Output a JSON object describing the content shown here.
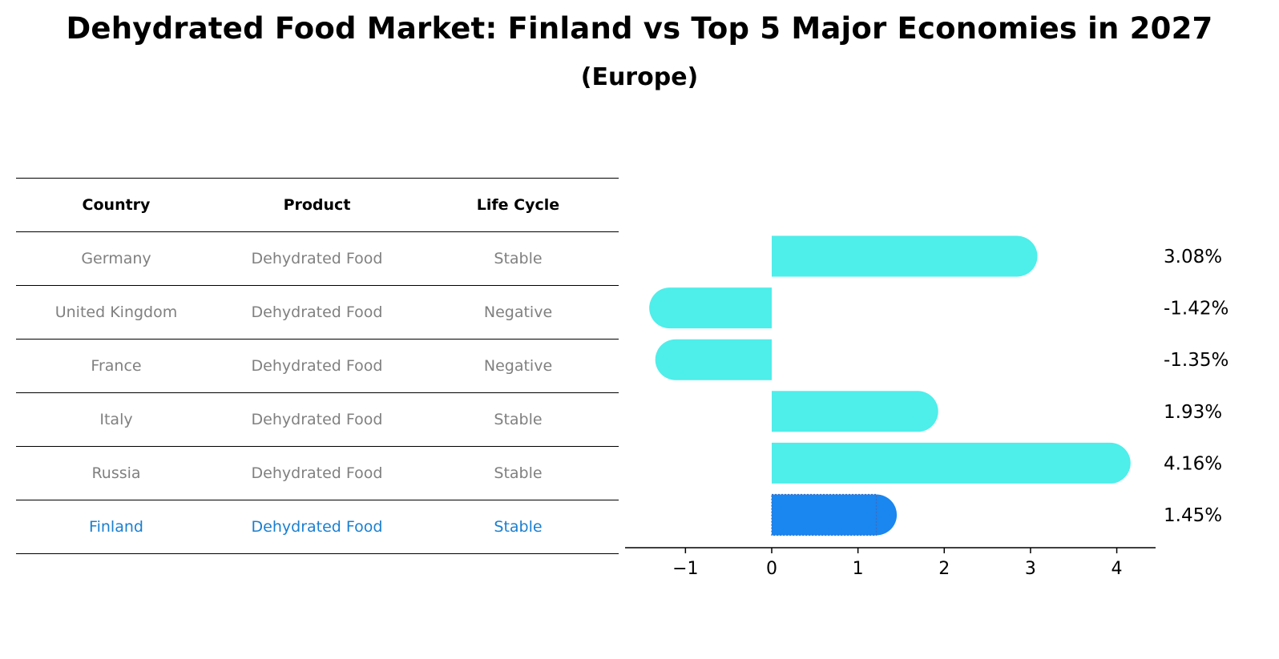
{
  "title": "Dehydrated Food Market: Finland vs Top 5 Major Economies in 2027",
  "subtitle": "(Europe)",
  "table": {
    "headers": [
      "Country",
      "Product",
      "Life Cycle"
    ],
    "rows": [
      {
        "country": "Germany",
        "product": "Dehydrated Food",
        "life_cycle": "Stable",
        "highlight": false
      },
      {
        "country": "United Kingdom",
        "product": "Dehydrated Food",
        "life_cycle": "Negative",
        "highlight": false
      },
      {
        "country": "France",
        "product": "Dehydrated Food",
        "life_cycle": "Negative",
        "highlight": false
      },
      {
        "country": "Italy",
        "product": "Dehydrated Food",
        "life_cycle": "Stable",
        "highlight": false
      },
      {
        "country": "Russia",
        "product": "Dehydrated Food",
        "life_cycle": "Stable",
        "highlight": false
      },
      {
        "country": "Finland",
        "product": "Dehydrated Food",
        "life_cycle": "Stable",
        "highlight": true
      }
    ]
  },
  "colors": {
    "bar": "#4eeeea",
    "highlight_bar": "#1a86f0",
    "highlight_text": "#1a7fd0",
    "muted_text": "#808080"
  },
  "chart_data": {
    "type": "bar",
    "orientation": "horizontal",
    "categories": [
      "Germany",
      "United Kingdom",
      "France",
      "Italy",
      "Russia",
      "Finland"
    ],
    "values": [
      3.08,
      -1.42,
      -1.35,
      1.93,
      4.16,
      1.45
    ],
    "value_labels": [
      "3.08%",
      "-1.42%",
      "-1.35%",
      "1.93%",
      "4.16%",
      "1.45%"
    ],
    "highlight_index": 5,
    "xlim": [
      -1.7,
      4.45
    ],
    "xticks": [
      -1,
      0,
      1,
      2,
      3,
      4
    ],
    "xtick_labels": [
      "−1",
      "0",
      "1",
      "2",
      "3",
      "4"
    ],
    "grid": false
  }
}
